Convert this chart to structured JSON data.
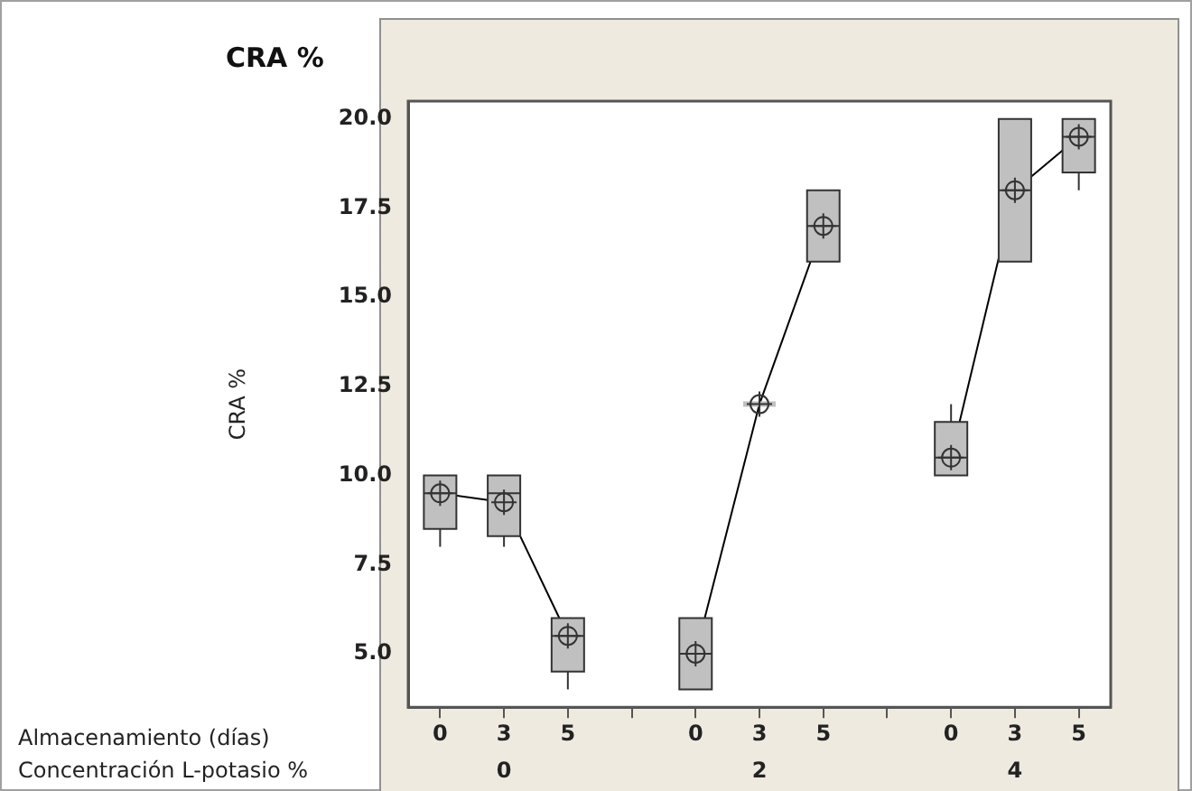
{
  "chart_data": {
    "type": "box",
    "title": "CRA %",
    "ylabel": "CRA %",
    "categories": [
      "0",
      "3",
      "5",
      null,
      "0",
      "3",
      "5",
      null,
      "0",
      "3",
      "5"
    ],
    "annotations": [
      "Almacenamiento (días)",
      "Concentración L-potasio %",
      "0",
      "2",
      "4"
    ],
    "ylim": [
      3.5,
      20.5
    ],
    "yticks": [
      {
        "value": 5,
        "label": "5.0"
      },
      {
        "value": 7.5,
        "label": "7.5"
      },
      {
        "value": 10,
        "label": "10.0"
      },
      {
        "value": 12.5,
        "label": "12.5"
      },
      {
        "value": 15,
        "label": "15.0"
      },
      {
        "value": 17.5,
        "label": "17.5"
      },
      {
        "value": 20,
        "label": "20.0"
      }
    ],
    "grid": false,
    "legend": false,
    "series": [
      {
        "type": "box",
        "color": "#c0c0c0",
        "boxes": [
          {
            "low": 8,
            "q1": 8.5,
            "median": 9.5,
            "q3": 10,
            "high": 10,
            "mean": 9.5
          },
          {
            "low": 8,
            "q1": 8.3,
            "median": 9.5,
            "q3": 10,
            "high": 10,
            "mean": 9.25
          },
          {
            "low": 4,
            "q1": 4.5,
            "median": 5.5,
            "q3": 6,
            "high": 6,
            "mean": 5.5
          },
          null,
          {
            "low": 4,
            "q1": 4,
            "median": 5,
            "q3": 6,
            "high": 6,
            "mean": 5
          },
          {
            "low": 12,
            "q1": 12,
            "median": 12,
            "q3": 12,
            "high": 12,
            "mean": 12
          },
          {
            "low": 16,
            "q1": 16,
            "median": 17,
            "q3": 18,
            "high": 18,
            "mean": 17
          },
          null,
          {
            "low": 10,
            "q1": 10,
            "median": 10.5,
            "q3": 11.5,
            "high": 12,
            "mean": 10.5
          },
          {
            "low": 16,
            "q1": 16,
            "median": 18,
            "q3": 20,
            "high": 20,
            "mean": 18
          },
          {
            "low": 18,
            "q1": 18.5,
            "median": 19.5,
            "q3": 20,
            "high": 20,
            "mean": 19.5
          }
        ]
      },
      {
        "type": "line",
        "color": "#000000",
        "marker": "none",
        "values": [
          9.5,
          9.25,
          5.5,
          null,
          5,
          12,
          17,
          null,
          10.5,
          18,
          19.5
        ]
      }
    ]
  }
}
